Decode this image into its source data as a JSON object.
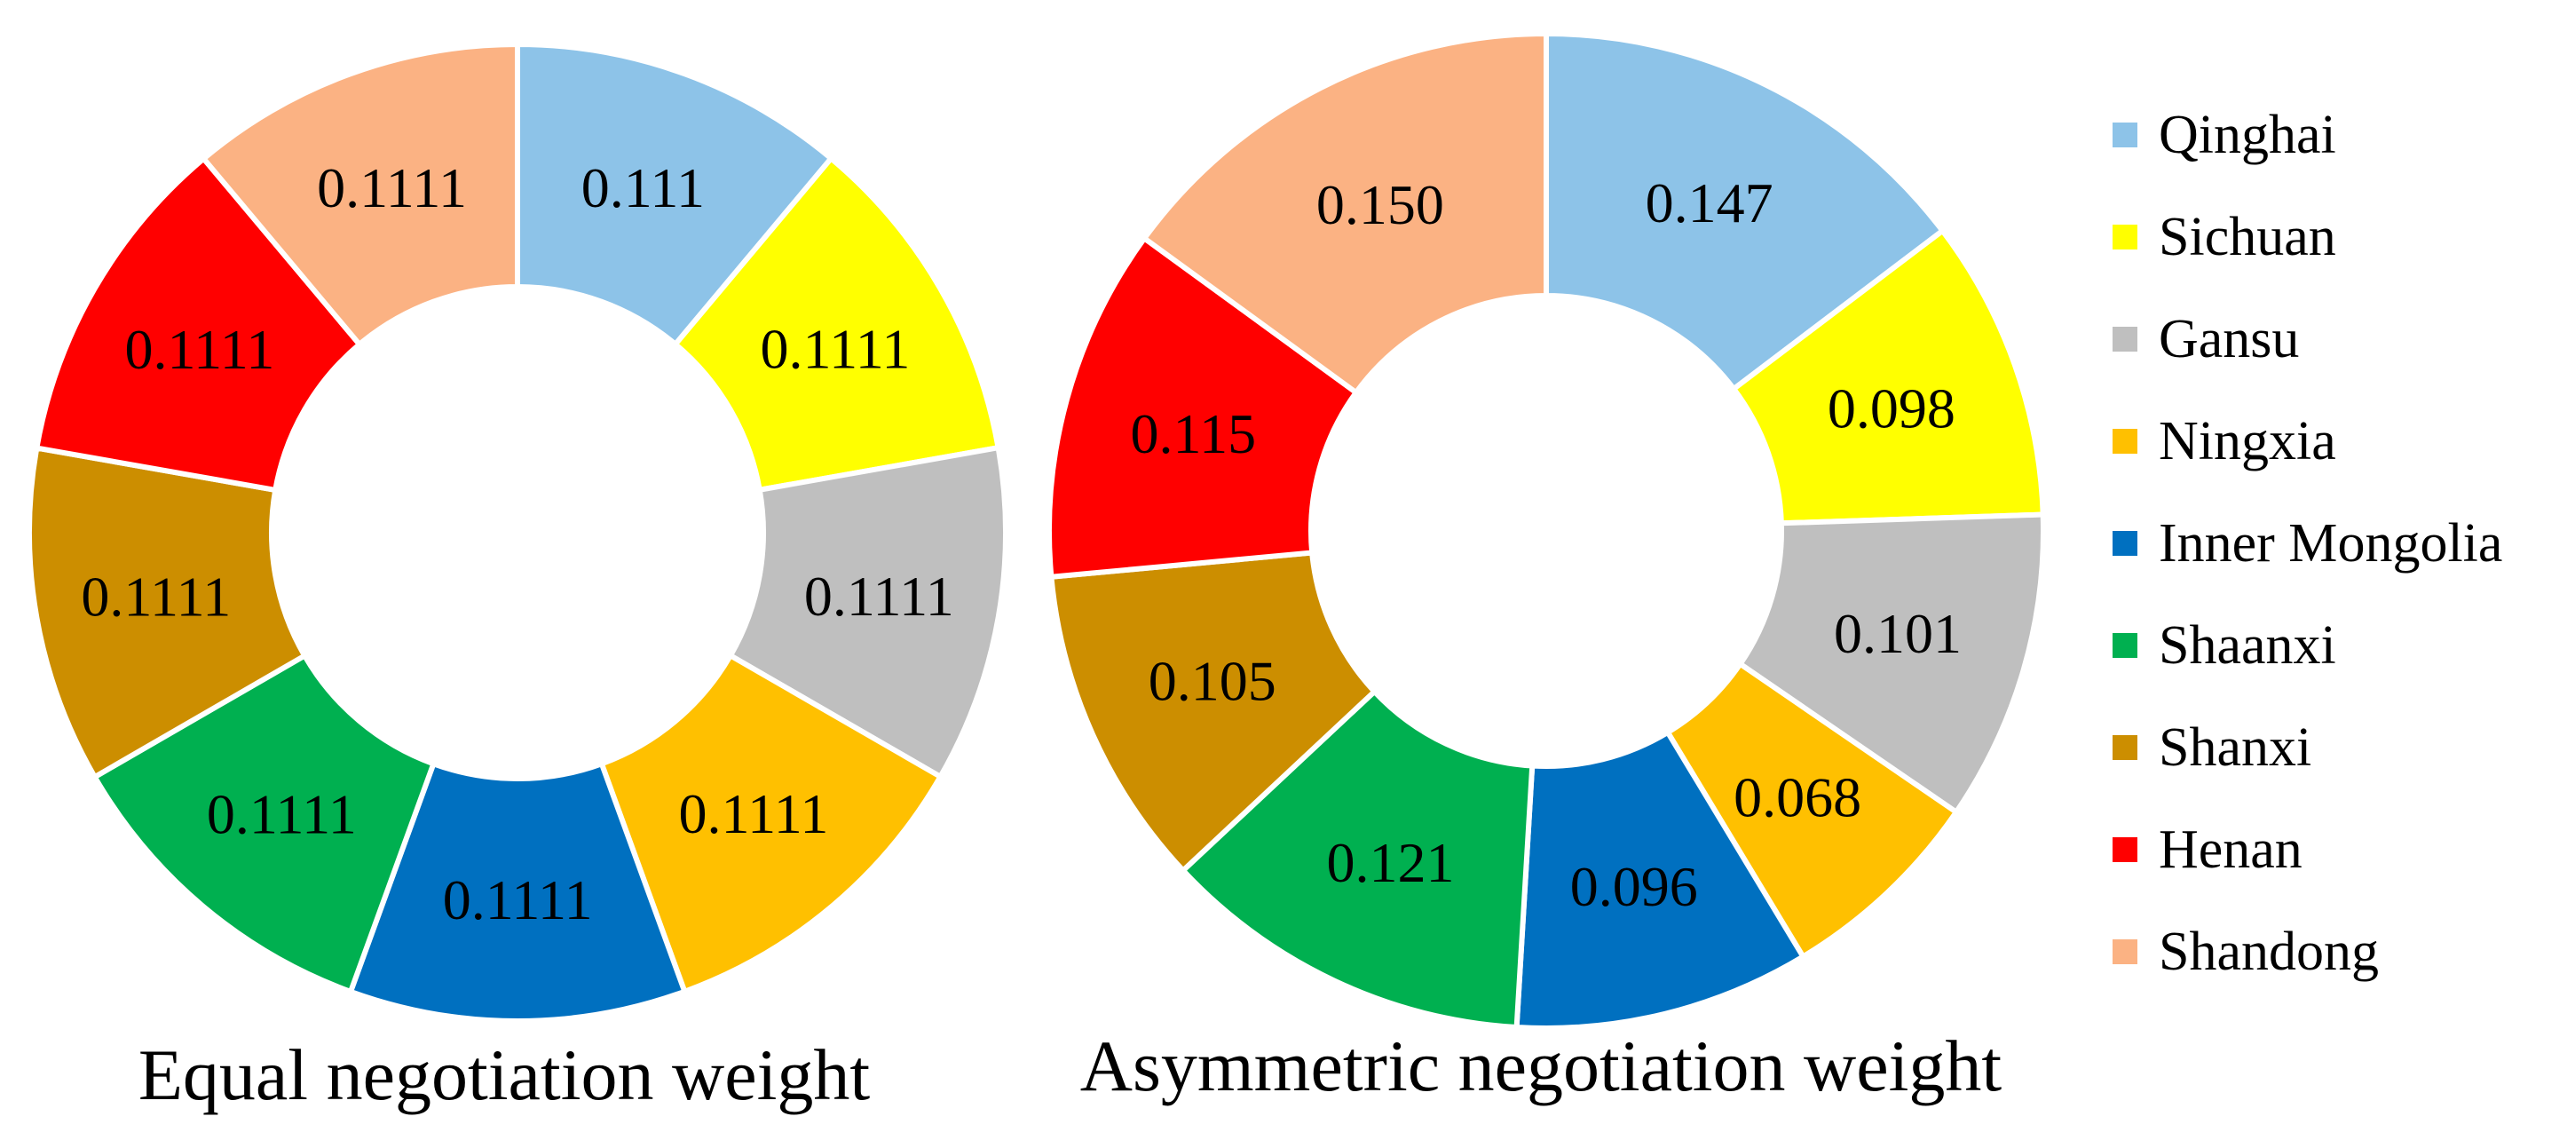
{
  "chart_data": [
    {
      "type": "pie",
      "title": "Equal negotiation weight",
      "categories": [
        "Qinghai",
        "Sichuan",
        "Gansu",
        "Ningxia",
        "Inner Mongolia",
        "Shaanxi",
        "Shanxi",
        "Henan",
        "Shandong"
      ],
      "values": [
        0.111,
        0.1111,
        0.1111,
        0.1111,
        0.1111,
        0.1111,
        0.1111,
        0.1111,
        0.1111
      ],
      "value_labels": [
        "0.111",
        "0.1111",
        "0.1111",
        "0.1111",
        "0.1111",
        "0.1111",
        "0.1111",
        "0.1111",
        "0.1111"
      ],
      "style": "donut"
    },
    {
      "type": "pie",
      "title": "Asymmetric negotiation weight",
      "categories": [
        "Qinghai",
        "Sichuan",
        "Gansu",
        "Ningxia",
        "Inner Mongolia",
        "Shaanxi",
        "Shanxi",
        "Henan",
        "Shandong"
      ],
      "values": [
        0.147,
        0.098,
        0.101,
        0.068,
        0.096,
        0.121,
        0.105,
        0.115,
        0.15
      ],
      "value_labels": [
        "0.147",
        "0.098",
        "0.101",
        "0.068",
        "0.096",
        "0.121",
        "0.105",
        "0.115",
        "0.150"
      ],
      "style": "donut"
    }
  ],
  "legend": {
    "placement": "right",
    "entries": [
      {
        "name": "Qinghai",
        "color": "#8DC3E8"
      },
      {
        "name": "Sichuan",
        "color": "#FFFF00"
      },
      {
        "name": "Gansu",
        "color": "#BFBFBF"
      },
      {
        "name": "Ningxia",
        "color": "#FFC000"
      },
      {
        "name": "Inner Mongolia",
        "color": "#0070C0"
      },
      {
        "name": "Shaanxi",
        "color": "#00B050"
      },
      {
        "name": "Shanxi",
        "color": "#CC8E00"
      },
      {
        "name": "Henan",
        "color": "#FF0000"
      },
      {
        "name": "Shandong",
        "color": "#FBB283"
      }
    ]
  }
}
